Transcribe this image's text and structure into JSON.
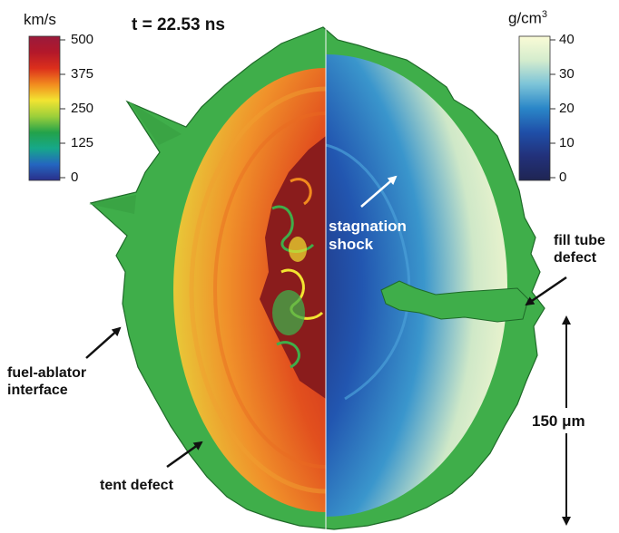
{
  "title": "t = 22.53 ns",
  "velocity_scale": {
    "unit": "km/s",
    "ticks": [
      "500",
      "375",
      "250",
      "125",
      "0"
    ],
    "colors": [
      "#2a2f8a",
      "#2466c0",
      "#16a88a",
      "#23a24a",
      "#9ccf3a",
      "#f2e431",
      "#f28a1e",
      "#dc2f1c",
      "#b3182a",
      "#9a1a3c"
    ]
  },
  "density_scale": {
    "unit": "g/cm",
    "unit_sup": "3",
    "ticks": [
      "40",
      "30",
      "20",
      "10",
      "0"
    ],
    "colors": [
      "#1f2553",
      "#22317a",
      "#1f4fa8",
      "#2a86c8",
      "#7cc4d8",
      "#d4eccd",
      "#fafbd6"
    ]
  },
  "labels": {
    "stagnation_line1": "stagnation",
    "stagnation_line2": "shock",
    "fill_tube_line1": "fill tube",
    "fill_tube_line2": "defect",
    "fuel_ablator_line1": "fuel-ablator",
    "fuel_ablator_line2": "interface",
    "tent_defect": "tent defect",
    "scale_bar": "150 μm"
  },
  "colors": {
    "ablator_green": "#3fae4a",
    "arrow": "#111111"
  }
}
